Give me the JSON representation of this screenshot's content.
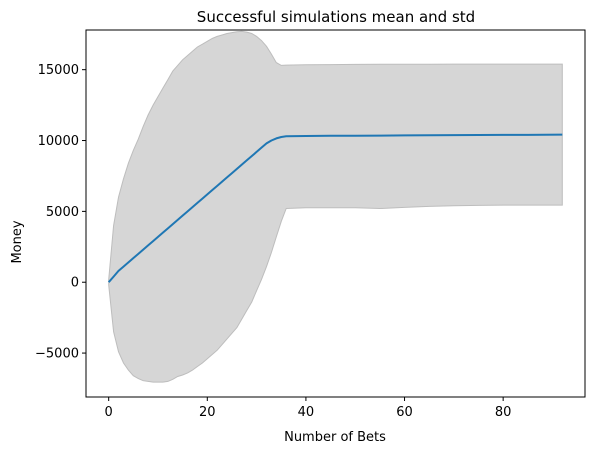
{
  "chart_data": {
    "type": "line",
    "title": "Successful simulations mean and std",
    "xlabel": "Number of Bets",
    "ylabel": "Money",
    "xlim": [
      -4.6,
      96.6
    ],
    "ylim": [
      -8100,
      17800
    ],
    "grid": false,
    "x_ticks": [
      0,
      20,
      40,
      60,
      80
    ],
    "x_tick_labels": [
      "0",
      "20",
      "40",
      "60",
      "80"
    ],
    "y_ticks": [
      -5000,
      0,
      5000,
      10000,
      15000
    ],
    "y_tick_labels": [
      "−5000",
      "0",
      "5000",
      "10000",
      "15000"
    ],
    "colors": {
      "mean_line": "#1f77b4",
      "std_band": "#d6d6d6",
      "std_band_edge": "#bdbdbd"
    },
    "series": [
      {
        "kind": "line",
        "x": [
          0,
          1,
          2,
          3,
          4,
          5,
          6,
          7,
          8,
          9,
          10,
          11,
          12,
          13,
          14,
          15,
          16,
          17,
          18,
          19,
          20,
          21,
          22,
          23,
          24,
          25,
          26,
          27,
          28,
          29,
          30,
          31,
          32,
          33,
          34,
          35,
          36,
          40,
          45,
          50,
          55,
          60,
          65,
          70,
          75,
          80,
          85,
          92
        ],
        "y": [
          0,
          400,
          800,
          1100,
          1400,
          1700,
          2000,
          2300,
          2600,
          2900,
          3200,
          3500,
          3800,
          4100,
          4400,
          4700,
          5000,
          5300,
          5600,
          5900,
          6200,
          6500,
          6800,
          7100,
          7400,
          7700,
          8000,
          8300,
          8600,
          8900,
          9200,
          9500,
          9800,
          10000,
          10150,
          10250,
          10300,
          10320,
          10330,
          10340,
          10350,
          10360,
          10370,
          10380,
          10390,
          10400,
          10400,
          10420
        ]
      },
      {
        "kind": "band",
        "x": [
          0,
          1,
          2,
          3,
          4,
          5,
          6,
          7,
          8,
          9,
          10,
          11,
          12,
          13,
          14,
          15,
          16,
          17,
          18,
          19,
          20,
          21,
          22,
          23,
          24,
          25,
          26,
          27,
          28,
          29,
          30,
          31,
          32,
          33,
          34,
          35,
          36,
          40,
          45,
          50,
          55,
          60,
          65,
          70,
          75,
          80,
          85,
          92
        ],
        "upper": [
          200,
          4000,
          6000,
          7300,
          8400,
          9300,
          10100,
          11000,
          11800,
          12500,
          13100,
          13700,
          14300,
          14900,
          15300,
          15700,
          16000,
          16300,
          16600,
          16800,
          17000,
          17200,
          17350,
          17450,
          17550,
          17620,
          17680,
          17700,
          17650,
          17550,
          17350,
          17050,
          16650,
          16100,
          15500,
          15300,
          15320,
          15350,
          15360,
          15370,
          15380,
          15380,
          15380,
          15390,
          15390,
          15390,
          15390,
          15390
        ],
        "lower": [
          -200,
          -3500,
          -4900,
          -5700,
          -6200,
          -6600,
          -6800,
          -6950,
          -7000,
          -7050,
          -7050,
          -7050,
          -7000,
          -6850,
          -6650,
          -6550,
          -6400,
          -6200,
          -5950,
          -5700,
          -5400,
          -5100,
          -4800,
          -4400,
          -4000,
          -3600,
          -3200,
          -2600,
          -2000,
          -1400,
          -600,
          200,
          1100,
          2100,
          3200,
          4300,
          5200,
          5250,
          5250,
          5250,
          5200,
          5280,
          5350,
          5400,
          5420,
          5440,
          5440,
          5440
        ]
      }
    ]
  }
}
